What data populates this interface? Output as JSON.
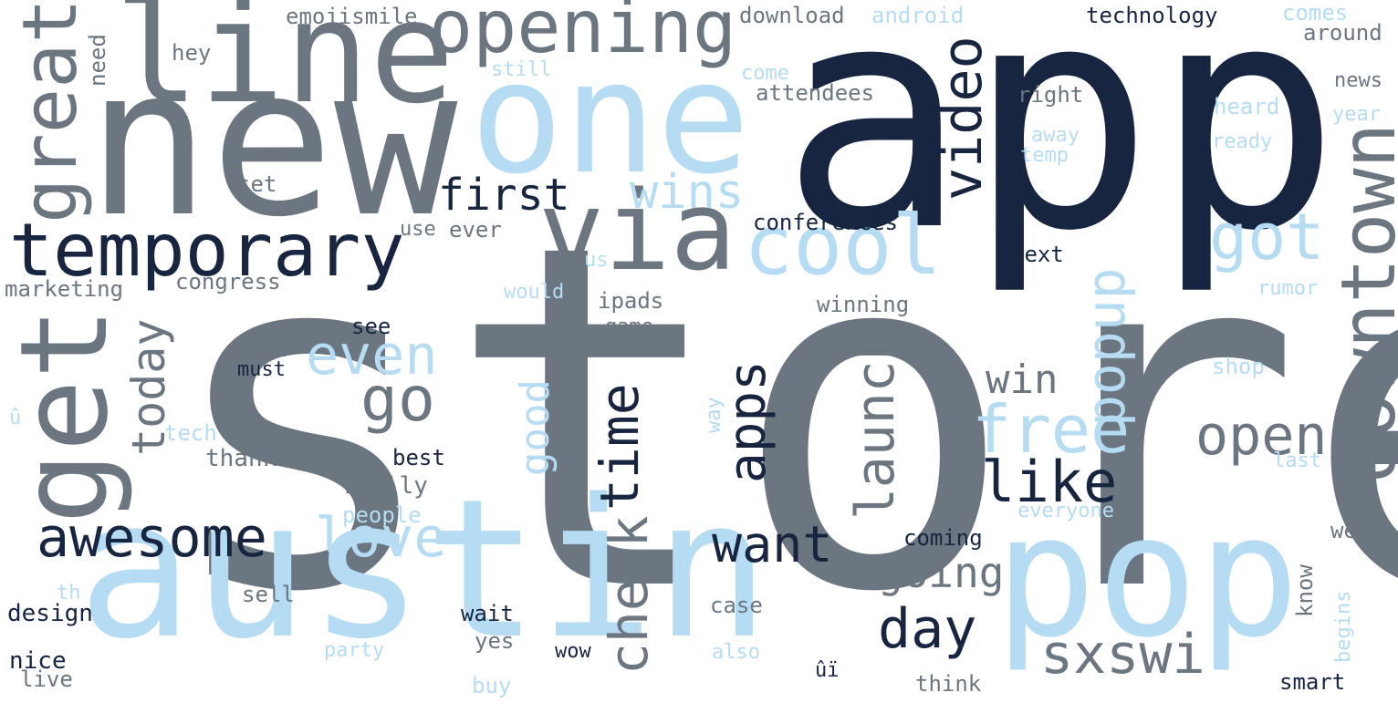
{
  "palette": {
    "navy": "#172540",
    "slate": "#6b7680",
    "sky": "#b5dcf2",
    "pale": "#d8edf9"
  },
  "words": [
    {
      "text": "store",
      "color": "slate"
    },
    {
      "text": "app",
      "color": "navy"
    },
    {
      "text": "new",
      "color": "slate"
    },
    {
      "text": "austin",
      "color": "sky"
    },
    {
      "text": "pop",
      "color": "sky"
    },
    {
      "text": "one",
      "color": "sky"
    },
    {
      "text": "line",
      "color": "slate"
    },
    {
      "text": "via",
      "color": "slate"
    },
    {
      "text": "get",
      "color": "slate"
    },
    {
      "text": "opening",
      "color": "slate"
    },
    {
      "text": "temporary",
      "color": "navy"
    },
    {
      "text": "cool",
      "color": "sky"
    },
    {
      "text": "great",
      "color": "slate"
    },
    {
      "text": "downtown",
      "color": "slate"
    },
    {
      "text": "got",
      "color": "sky"
    },
    {
      "text": "video",
      "color": "navy"
    },
    {
      "text": "first",
      "color": "navy"
    },
    {
      "text": "wins",
      "color": "sky"
    },
    {
      "text": "awesome",
      "color": "navy"
    },
    {
      "text": "love",
      "color": "sky"
    },
    {
      "text": "even",
      "color": "sky"
    },
    {
      "text": "go",
      "color": "slate"
    },
    {
      "text": "today",
      "color": "slate"
    },
    {
      "text": "sxswi",
      "color": "slate"
    },
    {
      "text": "day",
      "color": "navy"
    },
    {
      "text": "like",
      "color": "navy"
    },
    {
      "text": "free",
      "color": "sky"
    },
    {
      "text": "open",
      "color": "slate"
    },
    {
      "text": "popup",
      "color": "sky"
    },
    {
      "text": "launch",
      "color": "slate"
    },
    {
      "text": "apps",
      "color": "navy"
    },
    {
      "text": "time",
      "color": "navy"
    },
    {
      "text": "check",
      "color": "slate"
    },
    {
      "text": "good",
      "color": "sky"
    },
    {
      "text": "want",
      "color": "navy"
    },
    {
      "text": "going",
      "color": "slate"
    },
    {
      "text": "win",
      "color": "slate"
    },
    {
      "text": "conferences",
      "color": "navy"
    },
    {
      "text": "emojismile",
      "color": "slate"
    },
    {
      "text": "download",
      "color": "slate"
    },
    {
      "text": "android",
      "color": "sky"
    },
    {
      "text": "technology",
      "color": "navy"
    },
    {
      "text": "comes",
      "color": "sky"
    },
    {
      "text": "around",
      "color": "slate"
    },
    {
      "text": "news",
      "color": "slate"
    },
    {
      "text": "year",
      "color": "sky"
    },
    {
      "text": "heard",
      "color": "sky"
    },
    {
      "text": "ready",
      "color": "sky"
    },
    {
      "text": "right",
      "color": "slate"
    },
    {
      "text": "away",
      "color": "sky"
    },
    {
      "text": "temp",
      "color": "sky"
    },
    {
      "text": "attendees",
      "color": "slate"
    },
    {
      "text": "come",
      "color": "sky"
    },
    {
      "text": "still",
      "color": "sky"
    },
    {
      "text": "hey",
      "color": "slate"
    },
    {
      "text": "need",
      "color": "slate"
    },
    {
      "text": "set",
      "color": "slate"
    },
    {
      "text": "use",
      "color": "slate"
    },
    {
      "text": "ever",
      "color": "slate"
    },
    {
      "text": "marketing",
      "color": "slate"
    },
    {
      "text": "congress",
      "color": "slate"
    },
    {
      "text": "us",
      "color": "sky"
    },
    {
      "text": "would",
      "color": "sky"
    },
    {
      "text": "ipads",
      "color": "slate"
    },
    {
      "text": "game",
      "color": "slate"
    },
    {
      "text": "winning",
      "color": "slate"
    },
    {
      "text": "next",
      "color": "navy"
    },
    {
      "text": "rumor",
      "color": "sky"
    },
    {
      "text": "see",
      "color": "navy"
    },
    {
      "text": "well",
      "color": "slate"
    },
    {
      "text": "must",
      "color": "navy"
    },
    {
      "text": "shop",
      "color": "sky"
    },
    {
      "text": "û",
      "color": "sky"
    },
    {
      "text": "tech",
      "color": "sky"
    },
    {
      "text": "thanks",
      "color": "slate"
    },
    {
      "text": "best",
      "color": "navy"
    },
    {
      "text": "really",
      "color": "slate"
    },
    {
      "text": "way",
      "color": "sky"
    },
    {
      "text": "last",
      "color": "sky"
    },
    {
      "text": "people",
      "color": "sky"
    },
    {
      "text": "everyone",
      "color": "sky"
    },
    {
      "text": "coming",
      "color": "navy"
    },
    {
      "text": "week",
      "color": "slate"
    },
    {
      "text": "know",
      "color": "slate"
    },
    {
      "text": "begins",
      "color": "sky"
    },
    {
      "text": "th",
      "color": "sky"
    },
    {
      "text": "design",
      "color": "navy"
    },
    {
      "text": "sell",
      "color": "slate"
    },
    {
      "text": "case",
      "color": "slate"
    },
    {
      "text": "wait",
      "color": "navy"
    },
    {
      "text": "yes",
      "color": "slate"
    },
    {
      "text": "party",
      "color": "sky"
    },
    {
      "text": "also",
      "color": "sky"
    },
    {
      "text": "wow",
      "color": "navy"
    },
    {
      "text": "ûï",
      "color": "navy"
    },
    {
      "text": "nice",
      "color": "navy"
    },
    {
      "text": "live",
      "color": "slate"
    },
    {
      "text": "buy",
      "color": "sky"
    },
    {
      "text": "think",
      "color": "slate"
    },
    {
      "text": "smart",
      "color": "navy"
    }
  ]
}
